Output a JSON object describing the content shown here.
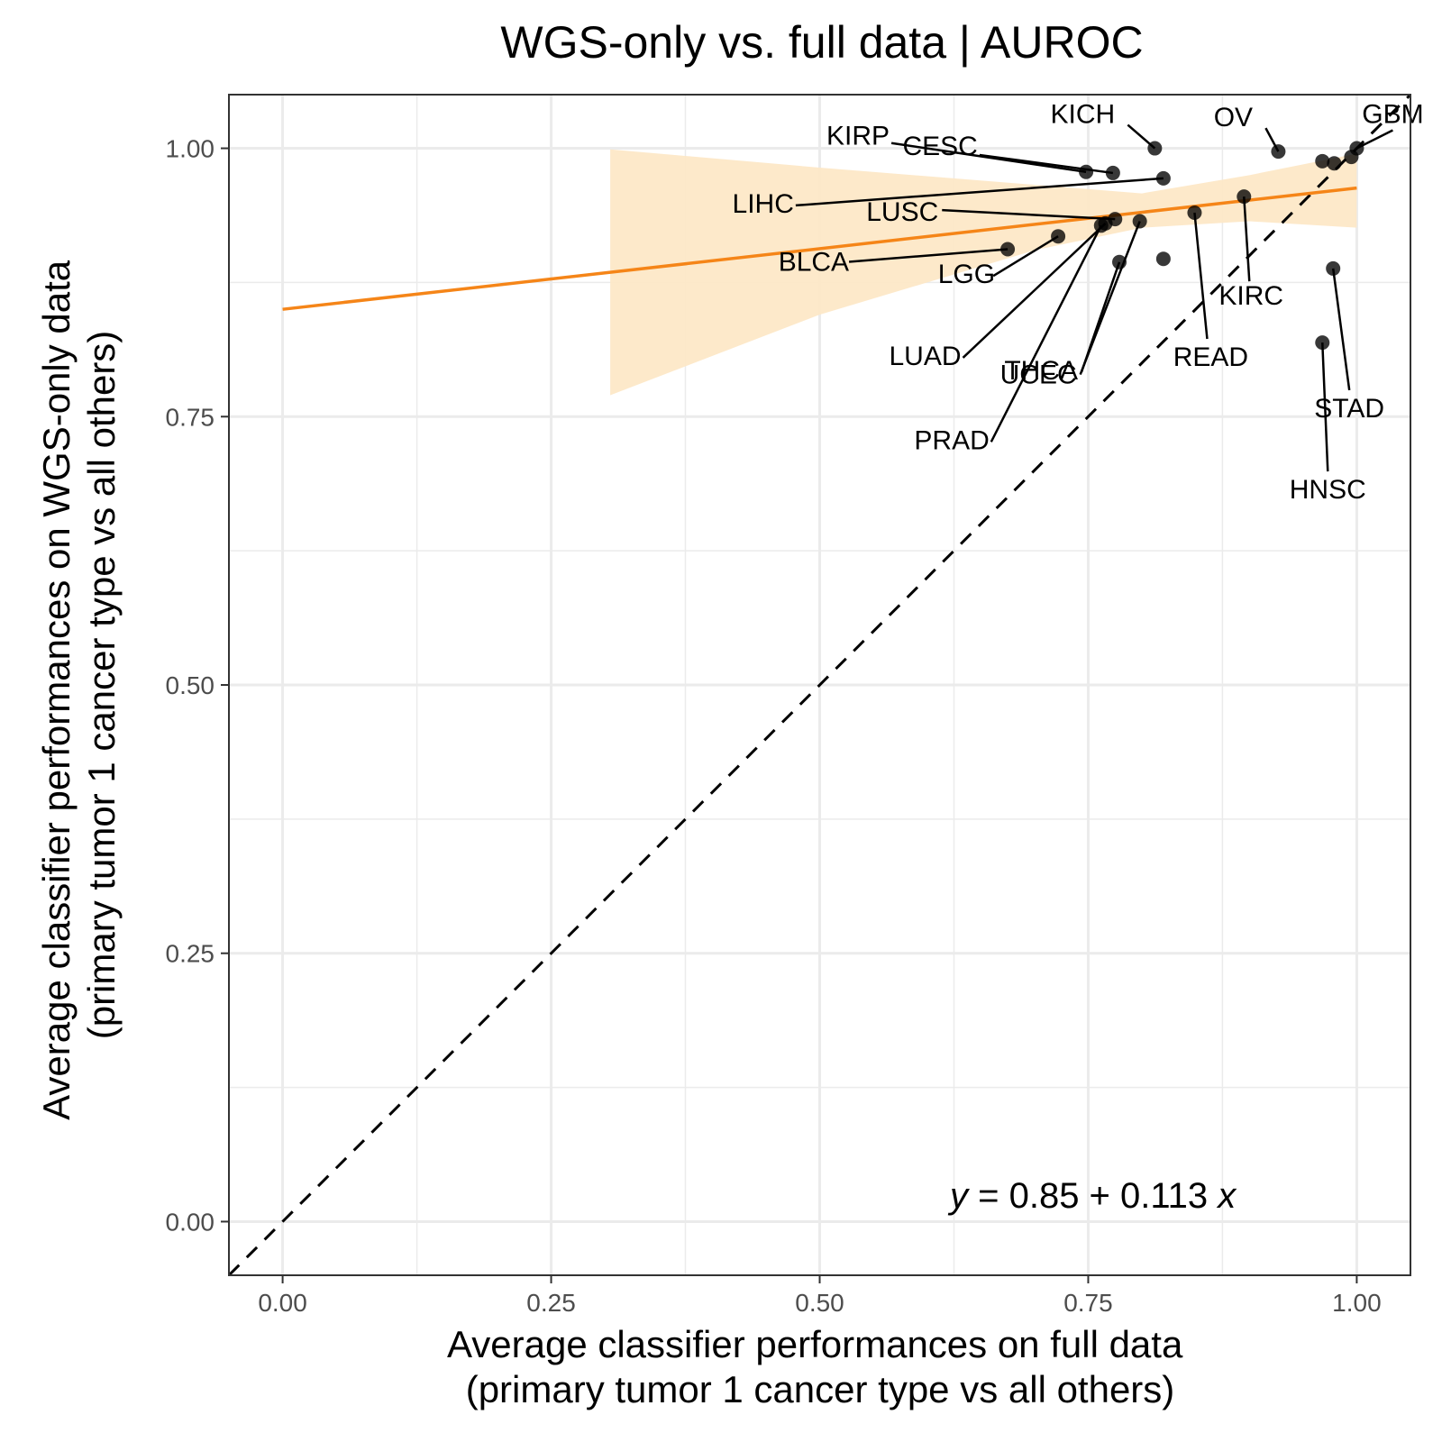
{
  "chart_data": {
    "type": "scatter",
    "title": "WGS-only vs. full data | AUROC",
    "xlabel": [
      "Average classifier performances on full data",
      "(primary tumor 1 cancer type vs all others)"
    ],
    "ylabel": [
      "Average classifier performances on WGS-only data",
      "(primary tumor 1 cancer type vs all others)"
    ],
    "xlim": [
      -0.05,
      1.05
    ],
    "ylim": [
      -0.05,
      1.05
    ],
    "x_ticks": [
      0,
      0.25,
      0.5,
      0.75,
      1
    ],
    "y_ticks": [
      0,
      0.25,
      0.5,
      0.75,
      1
    ],
    "x_tick_labels": [
      "0.00",
      "0.25",
      "0.50",
      "0.75",
      "1.00"
    ],
    "y_tick_labels": [
      "0.00",
      "0.25",
      "0.50",
      "0.75",
      "1.00"
    ],
    "grid": true,
    "series": [
      {
        "points": [
          {
            "label": "GBM",
            "x": 1.0,
            "y": 1.0
          },
          {
            "label": "OV",
            "x": 0.927,
            "y": 0.997
          },
          {
            "label": "KICH",
            "x": 0.812,
            "y": 1.0
          },
          {
            "label": "CESC",
            "x": 0.773,
            "y": 0.977
          },
          {
            "label": "KIRP",
            "x": 0.748,
            "y": 0.978
          },
          {
            "label": "LIHC",
            "x": 0.82,
            "y": 0.972
          },
          {
            "label": "LUSC",
            "x": 0.775,
            "y": 0.934
          },
          {
            "label": "LUAD",
            "x": 0.766,
            "y": 0.93
          },
          {
            "label": "PRAD",
            "x": 0.762,
            "y": 0.928
          },
          {
            "label": "BLCA",
            "x": 0.675,
            "y": 0.906
          },
          {
            "label": "LGG",
            "x": 0.722,
            "y": 0.918
          },
          {
            "label": "UCEC",
            "x": 0.798,
            "y": 0.932
          },
          {
            "label": "THCA",
            "x": 0.779,
            "y": 0.894
          },
          {
            "label": "READ",
            "x": 0.849,
            "y": 0.94
          },
          {
            "label": "",
            "x": 0.82,
            "y": 0.897
          },
          {
            "label": "KIRC",
            "x": 0.895,
            "y": 0.955
          },
          {
            "label": "STAD",
            "x": 0.978,
            "y": 0.888
          },
          {
            "label": "HNSC",
            "x": 0.968,
            "y": 0.819
          },
          {
            "label": "",
            "x": 0.968,
            "y": 0.988
          },
          {
            "label": "",
            "x": 0.979,
            "y": 0.986
          },
          {
            "label": "",
            "x": 0.995,
            "y": 0.992
          }
        ]
      }
    ],
    "fit": {
      "intercept": 0.85,
      "slope": 0.113,
      "x_range": [
        0,
        1
      ]
    },
    "confidence_band": {
      "x": [
        0.305,
        0.5,
        0.7,
        0.8,
        0.9,
        1.0
      ],
      "lower": [
        0.77,
        0.845,
        0.905,
        0.926,
        0.932,
        0.926
      ],
      "upper": [
        0.999,
        0.982,
        0.966,
        0.958,
        0.975,
        0.995
      ]
    },
    "reference_line": {
      "slope": 1,
      "intercept": 0,
      "style": "dashed"
    },
    "equation": {
      "y": "y",
      "eq": " = 0.85 + 0.113 ",
      "x": "x"
    },
    "colors": {
      "fit": "#f58518",
      "band": "#fde8c7",
      "point": "#000000",
      "grid": "#ebebeb",
      "panel_border": "#333333"
    }
  }
}
